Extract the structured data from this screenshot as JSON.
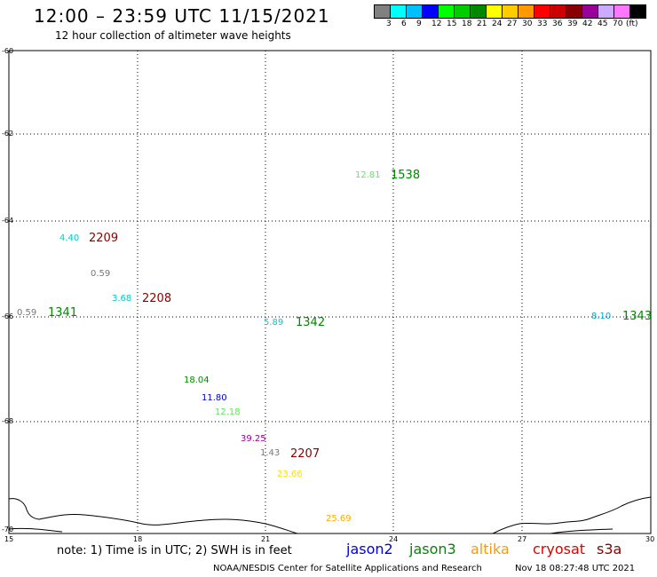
{
  "header": {
    "title": "12:00 – 23:59 UTC 11/15/2021",
    "subtitle": "12 hour collection of altimeter wave heights"
  },
  "legend": {
    "colors": [
      "#808080",
      "#00ffff",
      "#00bfff",
      "#0000ff",
      "#00ff00",
      "#00cc00",
      "#008800",
      "#ffff00",
      "#ffcc00",
      "#ff9900",
      "#ff0000",
      "#cc0000",
      "#880000",
      "#990099",
      "#ccaaff",
      "#ff77ff",
      "#000000"
    ],
    "labels": [
      "3",
      "6",
      "9",
      "12",
      "15",
      "18",
      "21",
      "24",
      "27",
      "30",
      "33",
      "36",
      "39",
      "42",
      "45",
      "70",
      "(ft)"
    ]
  },
  "axes": {
    "lat_labels": [
      "-60",
      "-62",
      "-64",
      "-66",
      "-68",
      "-70"
    ],
    "lon_labels": [
      "15",
      "18",
      "21",
      "24",
      "27",
      "30"
    ]
  },
  "observations": [
    {
      "text": "12.81",
      "color": "#55ee55"
    },
    {
      "text": "1538",
      "color": "#008800"
    },
    {
      "text": "4.40",
      "color": "#00cccc"
    },
    {
      "text": "2209",
      "color": "#880000"
    },
    {
      "text": "0.59",
      "color": "#777777"
    },
    {
      "text": "3.68",
      "color": "#00cccc"
    },
    {
      "text": "2208",
      "color": "#880000"
    },
    {
      "text": "0.59",
      "color": "#777777"
    },
    {
      "text": "1341",
      "color": "#008800"
    },
    {
      "text": "5.89",
      "color": "#00cccc"
    },
    {
      "text": "1342",
      "color": "#008800"
    },
    {
      "text": "8.10",
      "color": "#00aacc"
    },
    {
      "text": "1343",
      "color": "#008800"
    },
    {
      "text": "18.04",
      "color": "#008800"
    },
    {
      "text": "11.80",
      "color": "#0000cc"
    },
    {
      "text": "12.18",
      "color": "#55ee55"
    },
    {
      "text": "39.25",
      "color": "#990099"
    },
    {
      "text": "1.43",
      "color": "#777777"
    },
    {
      "text": "2207",
      "color": "#880000"
    },
    {
      "text": "23.66",
      "color": "#ffdd00"
    },
    {
      "text": "25.69",
      "color": "#ffaa00"
    }
  ],
  "footer": {
    "note": "note:  1) Time is in UTC;  2) SWH is in feet",
    "satellites": [
      {
        "name": "jason2",
        "color": "#0000dd"
      },
      {
        "name": "jason3",
        "color": "#008800"
      },
      {
        "name": "altika",
        "color": "#ff9900"
      },
      {
        "name": "cryosat",
        "color": "#dd0000"
      },
      {
        "name": "s3a",
        "color": "#880000"
      }
    ],
    "credit": "NOAA/NESDIS Center for Satellite Applications and Research",
    "timestamp": "Nov 18 08:27:48 UTC 2021"
  }
}
